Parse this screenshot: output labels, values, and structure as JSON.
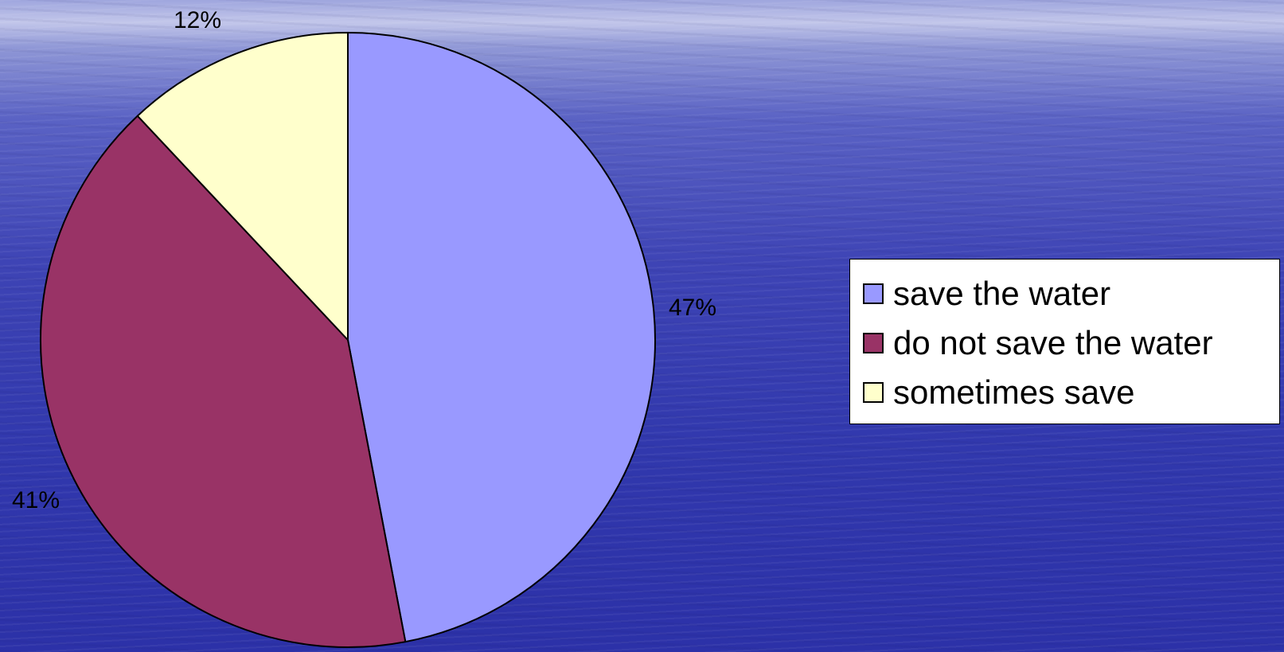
{
  "chart_data": {
    "type": "pie",
    "categories": [
      "save the water",
      "do not save the water",
      "sometimes save"
    ],
    "values": [
      47,
      41,
      12
    ],
    "data_labels": [
      "47%",
      "41%",
      "12%"
    ],
    "colors": [
      "#9999ff",
      "#993366",
      "#ffffcc"
    ],
    "legend_position": "right"
  }
}
